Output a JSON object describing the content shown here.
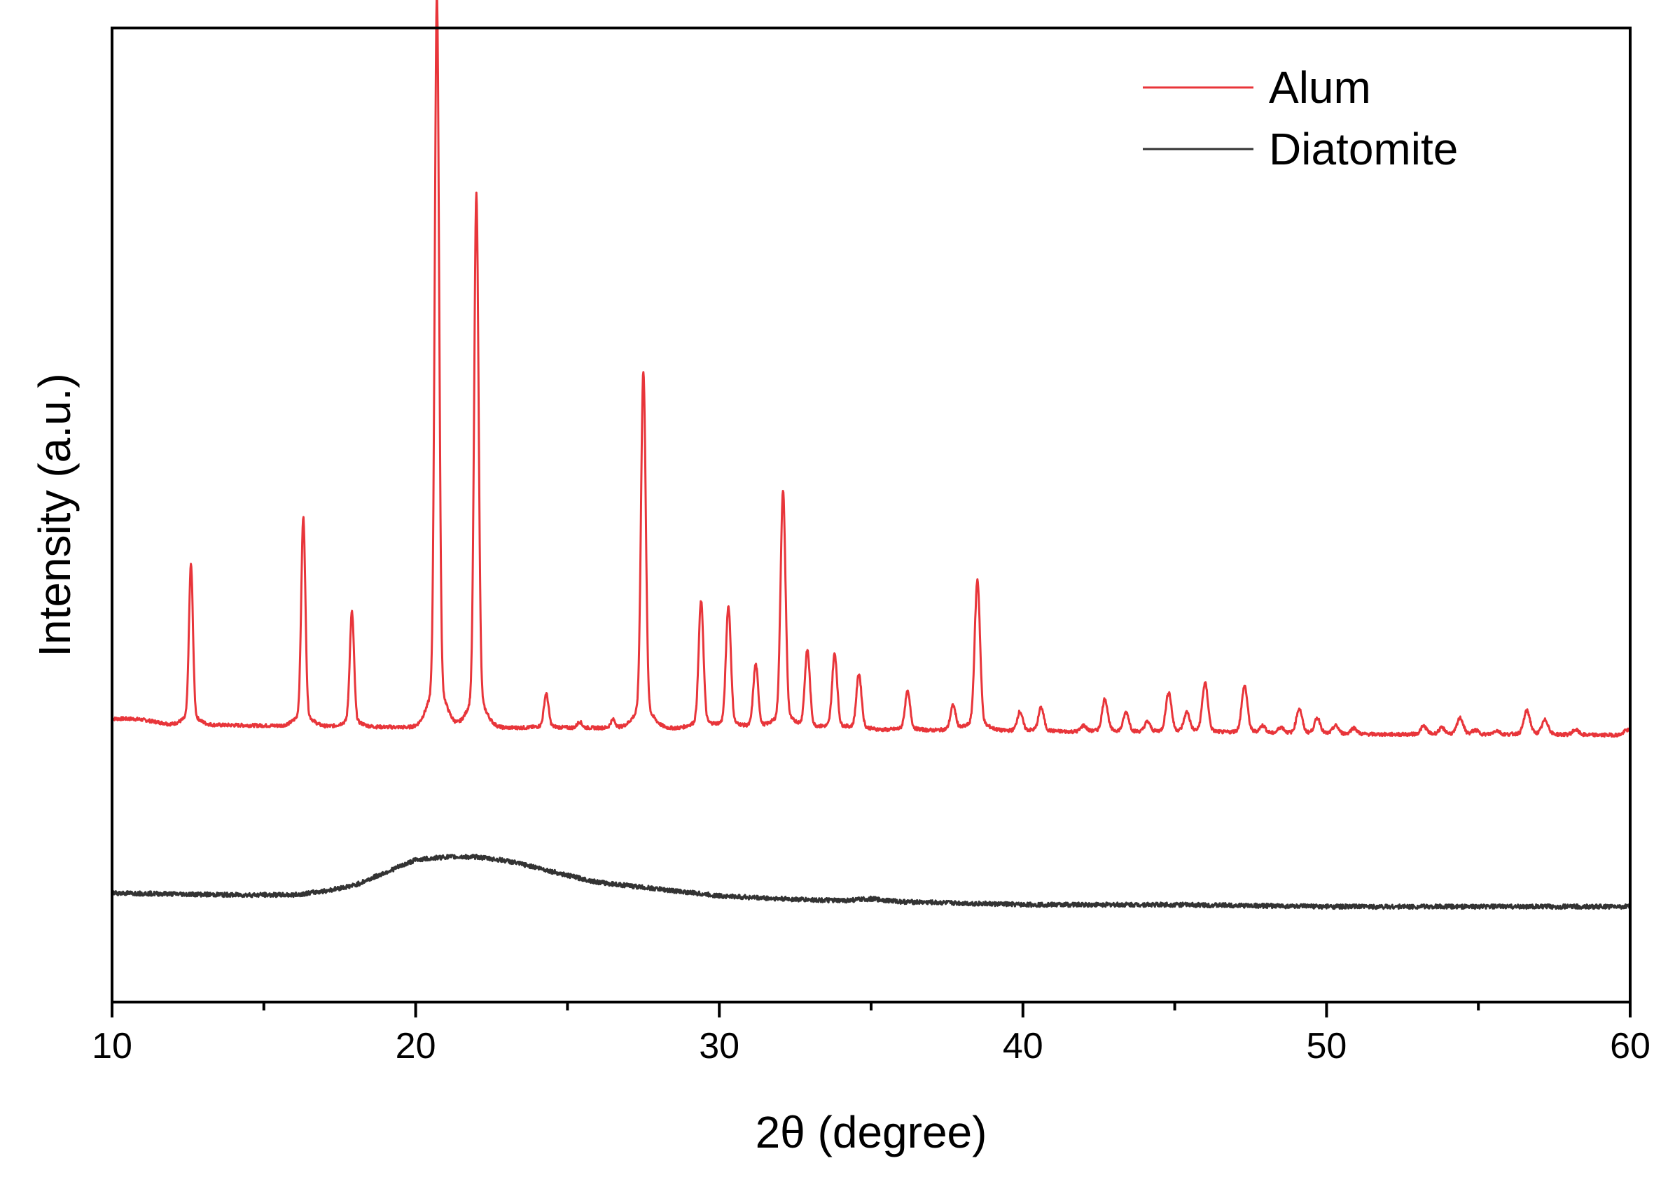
{
  "chart_data": {
    "type": "line",
    "title": "",
    "xlabel": "2θ (degree)",
    "ylabel": "Intensity (a.u.)",
    "xlim": [
      10,
      60
    ],
    "ylim": [
      0,
      100
    ],
    "x_ticks": [
      10,
      20,
      30,
      40,
      50,
      60
    ],
    "x_tick_labels": [
      "10",
      "20",
      "30",
      "40",
      "50",
      "60"
    ],
    "y_ticks_visible": false,
    "grid": false,
    "legend_position": "top-right",
    "series": [
      {
        "name": "Alum",
        "color": "#e8353a",
        "baseline": [
          [
            10,
            29.0
          ],
          [
            12,
            28.5
          ],
          [
            20,
            28.2
          ],
          [
            30,
            28.1
          ],
          [
            40,
            27.8
          ],
          [
            50,
            27.5
          ],
          [
            60,
            27.4
          ]
        ],
        "peaks": [
          [
            12.6,
            15.5
          ],
          [
            16.3,
            20.2
          ],
          [
            17.9,
            11.1
          ],
          [
            20.7,
            71.0
          ],
          [
            22.0,
            51.7
          ],
          [
            24.3,
            3.3
          ],
          [
            25.4,
            0.6
          ],
          [
            26.5,
            0.8
          ],
          [
            27.5,
            34.6
          ],
          [
            29.4,
            12.3
          ],
          [
            30.3,
            11.8
          ],
          [
            31.2,
            6.2
          ],
          [
            32.1,
            23.0
          ],
          [
            32.9,
            7.6
          ],
          [
            33.8,
            7.3
          ],
          [
            34.6,
            5.4
          ],
          [
            36.2,
            3.7
          ],
          [
            37.7,
            2.4
          ],
          [
            38.5,
            14.6
          ],
          [
            39.9,
            1.9
          ],
          [
            40.6,
            2.3
          ],
          [
            42.0,
            0.6
          ],
          [
            42.7,
            3.2
          ],
          [
            43.4,
            1.9
          ],
          [
            44.1,
            1.0
          ],
          [
            44.8,
            3.9
          ],
          [
            45.4,
            1.9
          ],
          [
            46.0,
            4.8
          ],
          [
            47.3,
            4.6
          ],
          [
            47.9,
            0.7
          ],
          [
            48.5,
            0.6
          ],
          [
            49.1,
            2.4
          ],
          [
            49.7,
            1.5
          ],
          [
            50.3,
            0.8
          ],
          [
            50.9,
            0.6
          ],
          [
            53.2,
            0.8
          ],
          [
            53.8,
            0.6
          ],
          [
            54.4,
            1.6
          ],
          [
            54.9,
            0.4
          ],
          [
            55.6,
            0.4
          ],
          [
            56.6,
            2.3
          ],
          [
            57.2,
            1.4
          ],
          [
            58.2,
            0.5
          ],
          [
            59.9,
            0.5
          ]
        ]
      },
      {
        "name": "Diatomite",
        "color": "#333333",
        "points": [
          [
            10,
            11.2
          ],
          [
            14,
            11.0
          ],
          [
            16,
            11.0
          ],
          [
            17,
            11.4
          ],
          [
            18,
            12.0
          ],
          [
            19,
            13.3
          ],
          [
            20,
            14.6
          ],
          [
            21,
            14.9
          ],
          [
            22,
            14.9
          ],
          [
            23,
            14.5
          ],
          [
            24,
            13.8
          ],
          [
            25,
            13.0
          ],
          [
            26,
            12.3
          ],
          [
            28,
            11.6
          ],
          [
            30,
            10.9
          ],
          [
            32,
            10.6
          ],
          [
            34,
            10.4
          ],
          [
            35,
            10.6
          ],
          [
            36,
            10.3
          ],
          [
            40,
            10.0
          ],
          [
            45,
            10.0
          ],
          [
            50,
            9.8
          ],
          [
            55,
            9.8
          ],
          [
            60,
            9.8
          ]
        ]
      }
    ]
  }
}
